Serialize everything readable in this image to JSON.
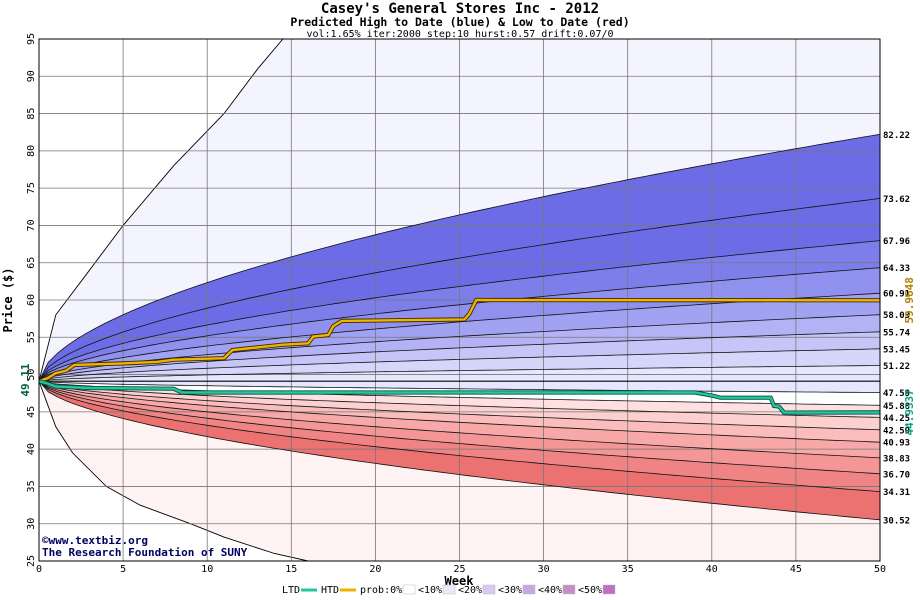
{
  "chart_data": {
    "type": "area",
    "title": "Casey's General Stores Inc - 2012",
    "subtitle": "Predicted High to Date (blue) &  Low to Date (red)",
    "params": "vol:1.65% iter:2000 step:10 hurst:0.57 drift:0.07/0",
    "xlabel": "Week",
    "ylabel": "Price ($)",
    "xlim": [
      0,
      50
    ],
    "ylim": [
      25,
      95
    ],
    "xticks": [
      0,
      5,
      10,
      15,
      20,
      25,
      30,
      35,
      40,
      45,
      50
    ],
    "yticks": [
      25,
      30,
      35,
      40,
      45,
      50,
      55,
      60,
      65,
      70,
      75,
      80,
      85,
      90,
      95
    ],
    "grid": true,
    "start_price": 49.11,
    "start_price_label": "49.11",
    "hurst": 0.57,
    "high_band_end_values": [
      47.59,
      51.22,
      53.45,
      55.74,
      58.03,
      60.91,
      64.33,
      67.96,
      73.62,
      82.22
    ],
    "high_band_end_labels": [
      "47.59",
      "51.22",
      "53.45",
      "55.74",
      "58.03",
      "60.91",
      "64.33",
      "67.96",
      "73.62",
      "82.22"
    ],
    "low_band_end_values": [
      45.88,
      44.25,
      42.59,
      40.93,
      38.83,
      36.7,
      34.31,
      30.52
    ],
    "low_band_end_labels": [
      "45.88",
      "44.25",
      "42.59",
      "40.93",
      "38.83",
      "36.70",
      "34.31",
      "30.52"
    ],
    "outer_envelope": {
      "upper": [
        [
          0,
          49.11
        ],
        [
          1,
          58
        ],
        [
          3,
          64
        ],
        [
          5,
          70
        ],
        [
          8,
          78
        ],
        [
          11,
          85
        ],
        [
          13,
          91
        ],
        [
          14.5,
          95
        ]
      ],
      "lower": [
        [
          0,
          49.11
        ],
        [
          1,
          43
        ],
        [
          2,
          39.5
        ],
        [
          4,
          35
        ],
        [
          6,
          32.5
        ],
        [
          9,
          30
        ],
        [
          11,
          28.2
        ],
        [
          14,
          26
        ],
        [
          16,
          25
        ]
      ]
    },
    "series": [
      {
        "name": "HTD",
        "color": "#f0b400",
        "end_label": "59.9648",
        "values": [
          [
            0,
            49.11
          ],
          [
            0.5,
            49.5
          ],
          [
            1,
            50.2
          ],
          [
            1.6,
            50.5
          ],
          [
            2.1,
            51.3
          ],
          [
            5,
            51.5
          ],
          [
            7,
            51.7
          ],
          [
            8,
            52.0
          ],
          [
            11,
            52.2
          ],
          [
            11.5,
            53.3
          ],
          [
            14.5,
            54.0
          ],
          [
            16,
            54.2
          ],
          [
            16.3,
            55.1
          ],
          [
            17.2,
            55.3
          ],
          [
            17.5,
            56.5
          ],
          [
            18,
            57.2
          ],
          [
            22,
            57.3
          ],
          [
            25.3,
            57.4
          ],
          [
            25.6,
            58.2
          ],
          [
            26,
            60.0
          ],
          [
            50,
            59.96
          ]
        ]
      },
      {
        "name": "LTD",
        "color": "#20c8a0",
        "end_label": "44.9337",
        "values": [
          [
            0,
            49.11
          ],
          [
            0.5,
            48.8
          ],
          [
            1,
            48.4
          ],
          [
            3,
            48.2
          ],
          [
            8,
            48.1
          ],
          [
            8.5,
            47.6
          ],
          [
            20,
            47.6
          ],
          [
            39,
            47.6
          ],
          [
            40,
            47.2
          ],
          [
            40.5,
            46.9
          ],
          [
            43.5,
            46.9
          ],
          [
            43.7,
            45.8
          ],
          [
            44,
            45.7
          ],
          [
            44.3,
            44.9
          ],
          [
            50,
            44.93
          ]
        ]
      }
    ],
    "band_colors_high": [
      "#f4f4ff",
      "#e6e6ff",
      "#d6d6fb",
      "#c5c5f8",
      "#b2b2f4",
      "#a2a2f2",
      "#9090ee",
      "#7e7eea",
      "#6c6ce6"
    ],
    "band_colors_low": [
      "#fff2f2",
      "#ffe0e0",
      "#fdd0d0",
      "#fbbcbc",
      "#f8a8a8",
      "#f49696",
      "#f08484",
      "#ec7272"
    ],
    "legend": {
      "items": [
        {
          "label": "LTD",
          "color": "#20c8a0",
          "kind": "line"
        },
        {
          "label": "HTD",
          "color": "#f0b400",
          "kind": "line"
        },
        {
          "label": "prob:0%",
          "color": "#ffffff",
          "kind": "swatch"
        },
        {
          "label": "<10%",
          "color": "#ece8f8",
          "kind": "swatch"
        },
        {
          "label": "<20%",
          "color": "#dcc8ec",
          "kind": "swatch"
        },
        {
          "label": "<30%",
          "color": "#c8a8e0",
          "kind": "swatch"
        },
        {
          "label": "<40%",
          "color": "#c88cc8",
          "kind": "swatch"
        },
        {
          "label": "<50%",
          "color": "#c070c0",
          "kind": "swatch"
        }
      ]
    }
  },
  "branding": {
    "url": "©www.textbiz.org",
    "org": "The Research Foundation of SUNY"
  }
}
